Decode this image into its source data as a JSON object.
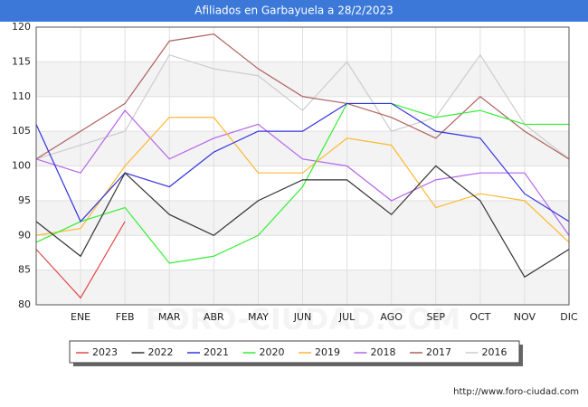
{
  "chart_data": {
    "type": "line",
    "title": "Afiliados en Garbayuela a 28/2/2023",
    "categories": [
      null,
      "ENE",
      "FEB",
      "MAR",
      "ABR",
      "MAY",
      "JUN",
      "JUL",
      "AGO",
      "SEP",
      "OCT",
      "NOV",
      "DIC"
    ],
    "series": [
      {
        "name": "2023",
        "color": "#e34a4a",
        "values": [
          88,
          81,
          92,
          null,
          null,
          null,
          null,
          null,
          null,
          null,
          null,
          null,
          null
        ]
      },
      {
        "name": "2022",
        "color": "#333333",
        "values": [
          92,
          87,
          99,
          93,
          90,
          95,
          98,
          98,
          93,
          100,
          95,
          84,
          88
        ]
      },
      {
        "name": "2021",
        "color": "#3333dd",
        "values": [
          106,
          92,
          99,
          97,
          102,
          105,
          105,
          109,
          109,
          105,
          104,
          96,
          92
        ]
      },
      {
        "name": "2020",
        "color": "#33ee33",
        "values": [
          89,
          92,
          94,
          86,
          87,
          90,
          97,
          109,
          109,
          107,
          108,
          106,
          106
        ]
      },
      {
        "name": "2019",
        "color": "#ffb833",
        "values": [
          90,
          91,
          100,
          107,
          107,
          99,
          99,
          104,
          103,
          94,
          96,
          95,
          89
        ]
      },
      {
        "name": "2018",
        "color": "#b566e8",
        "values": [
          101,
          99,
          108,
          101,
          104,
          106,
          101,
          100,
          95,
          98,
          99,
          99,
          90
        ]
      },
      {
        "name": "2017",
        "color": "#b06060",
        "values": [
          101,
          105,
          109,
          118,
          119,
          114,
          110,
          109,
          107,
          104,
          110,
          105,
          101
        ]
      },
      {
        "name": "2016",
        "color": "#cccccc",
        "values": [
          101,
          103,
          105,
          116,
          114,
          113,
          108,
          115,
          105,
          107,
          116,
          106,
          101
        ]
      }
    ],
    "ylim": [
      80,
      120
    ],
    "yticks": [
      80,
      85,
      90,
      95,
      100,
      105,
      110,
      115,
      120
    ],
    "grid": true,
    "legend": "bottom",
    "watermark": "FORO-CIUDAD.COM",
    "footer": "http://www.foro-ciudad.com"
  }
}
